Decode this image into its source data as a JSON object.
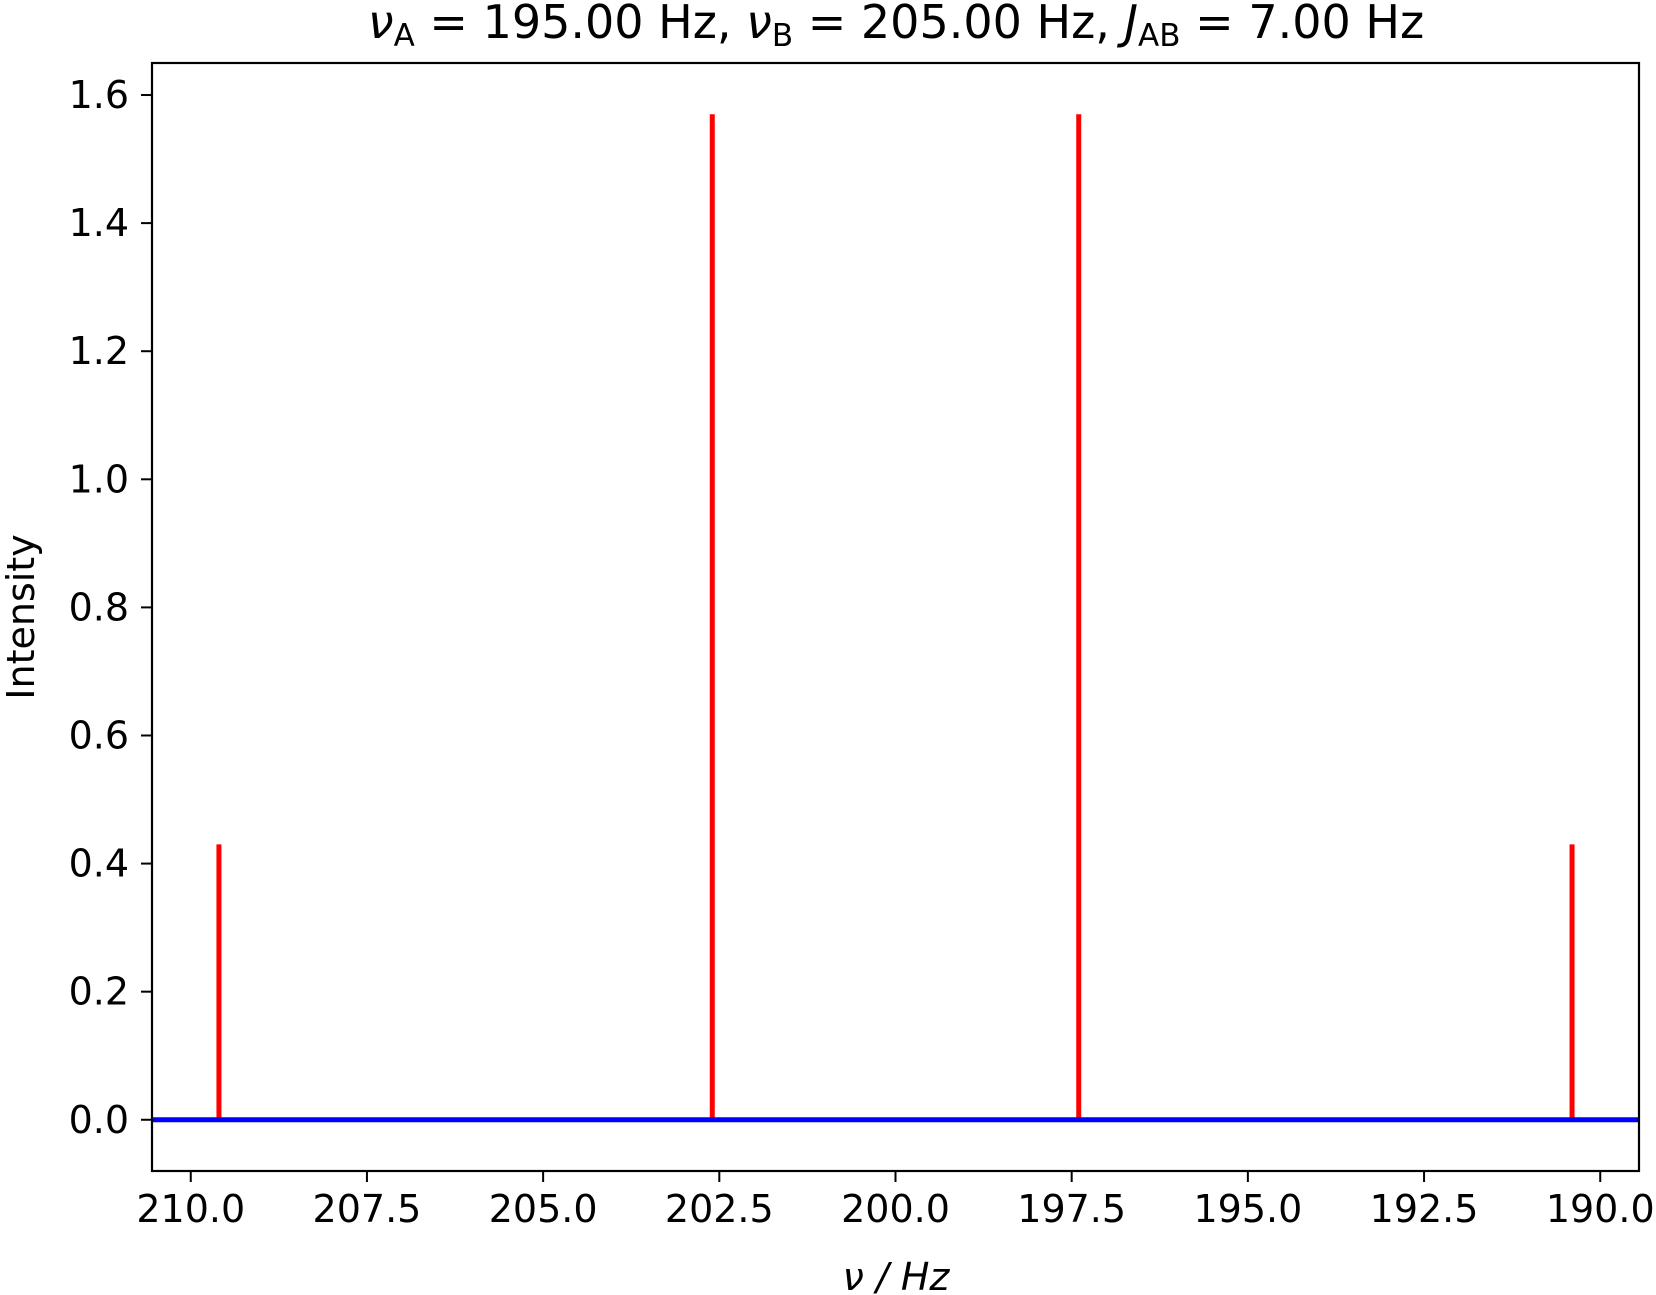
{
  "chart_data": {
    "type": "stem",
    "title_parts": {
      "nu_symbol": "ν",
      "sub_a": "A",
      "eq_a": " = 195.00 Hz, ",
      "sub_b": "B",
      "eq_b": " = 205.00 Hz, ",
      "j_symbol": "J",
      "sub_ab": "AB",
      "eq_j": " = 7.00 Hz"
    },
    "xlabel": "ν / Hz",
    "ylabel": "Intensity",
    "xlim": [
      210.55,
      189.45
    ],
    "ylim": [
      -0.08,
      1.65
    ],
    "xticks": [
      210.0,
      207.5,
      205.0,
      202.5,
      200.0,
      197.5,
      195.0,
      192.5,
      190.0
    ],
    "xtick_labels": [
      "210.0",
      "207.5",
      "205.0",
      "202.5",
      "200.0",
      "197.5",
      "195.0",
      "192.5",
      "190.0"
    ],
    "yticks": [
      0.0,
      0.2,
      0.4,
      0.6,
      0.8,
      1.0,
      1.2,
      1.4,
      1.6
    ],
    "ytick_labels": [
      "0.0",
      "0.2",
      "0.4",
      "0.6",
      "0.8",
      "1.0",
      "1.2",
      "1.4",
      "1.6"
    ],
    "series": [
      {
        "x": [
          209.6,
          202.6,
          197.4,
          190.4
        ],
        "y": [
          0.43,
          1.57,
          1.57,
          0.43
        ],
        "color": "#ff0000"
      }
    ],
    "baseline": {
      "y": 0.0,
      "color": "#0000ff"
    },
    "grid": false,
    "legend": false
  }
}
